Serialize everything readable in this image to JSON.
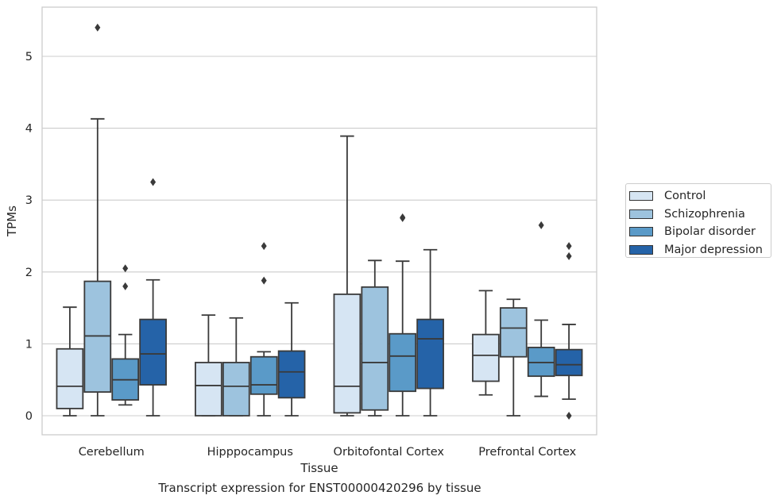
{
  "caption": "Transcript expression for ENST00000420296 by tissue",
  "chart_data": {
    "type": "box",
    "xlabel": "Tissue",
    "ylabel": "TPMs",
    "ylim": [
      -0.25,
      5.7
    ],
    "yticks": [
      0,
      1,
      2,
      3,
      4,
      5
    ],
    "grid": true,
    "legend_position": "right",
    "categories": [
      "Cerebellum",
      "Hipppocampus",
      "Orbitofontal Cortex",
      "Prefrontal Cortex"
    ],
    "series": [
      {
        "name": "Control",
        "color": "#d6e5f3",
        "boxes": [
          {
            "whisker_low": 0.0,
            "q1": 0.1,
            "median": 0.41,
            "q3": 0.93,
            "whisker_high": 1.51,
            "outliers": []
          },
          {
            "whisker_low": 0.0,
            "q1": 0.0,
            "median": 0.42,
            "q3": 0.74,
            "whisker_high": 1.4,
            "outliers": []
          },
          {
            "whisker_low": 0.0,
            "q1": 0.04,
            "median": 0.41,
            "q3": 1.69,
            "whisker_high": 3.89,
            "outliers": []
          },
          {
            "whisker_low": 0.29,
            "q1": 0.48,
            "median": 0.84,
            "q3": 1.13,
            "whisker_high": 1.74,
            "outliers": []
          }
        ]
      },
      {
        "name": "Schizophrenia",
        "color": "#9dc3de",
        "boxes": [
          {
            "whisker_low": 0.0,
            "q1": 0.33,
            "median": 1.11,
            "q3": 1.87,
            "whisker_high": 4.13,
            "outliers": [
              5.4
            ]
          },
          {
            "whisker_low": 0.0,
            "q1": 0.0,
            "median": 0.41,
            "q3": 0.74,
            "whisker_high": 1.36,
            "outliers": []
          },
          {
            "whisker_low": 0.0,
            "q1": 0.08,
            "median": 0.74,
            "q3": 1.79,
            "whisker_high": 2.16,
            "outliers": []
          },
          {
            "whisker_low": 0.0,
            "q1": 0.82,
            "median": 1.22,
            "q3": 1.5,
            "whisker_high": 1.62,
            "outliers": []
          }
        ]
      },
      {
        "name": "Bipolar disorder",
        "color": "#5a9ac8",
        "boxes": [
          {
            "whisker_low": 0.15,
            "q1": 0.22,
            "median": 0.5,
            "q3": 0.79,
            "whisker_high": 1.13,
            "outliers": [
              1.8,
              2.05
            ]
          },
          {
            "whisker_low": 0.0,
            "q1": 0.3,
            "median": 0.43,
            "q3": 0.82,
            "whisker_high": 0.89,
            "outliers": [
              1.88,
              2.36
            ]
          },
          {
            "whisker_low": 0.0,
            "q1": 0.34,
            "median": 0.83,
            "q3": 1.14,
            "whisker_high": 2.15,
            "outliers": [
              2.75,
              2.76
            ]
          },
          {
            "whisker_low": 0.27,
            "q1": 0.55,
            "median": 0.74,
            "q3": 0.95,
            "whisker_high": 1.33,
            "outliers": [
              2.65
            ]
          }
        ]
      },
      {
        "name": "Major depression",
        "color": "#2563a8",
        "boxes": [
          {
            "whisker_low": 0.0,
            "q1": 0.43,
            "median": 0.86,
            "q3": 1.34,
            "whisker_high": 1.89,
            "outliers": [
              3.25
            ]
          },
          {
            "whisker_low": 0.0,
            "q1": 0.25,
            "median": 0.61,
            "q3": 0.9,
            "whisker_high": 1.57,
            "outliers": []
          },
          {
            "whisker_low": 0.0,
            "q1": 0.38,
            "median": 1.07,
            "q3": 1.34,
            "whisker_high": 2.31,
            "outliers": []
          },
          {
            "whisker_low": 0.23,
            "q1": 0.56,
            "median": 0.71,
            "q3": 0.92,
            "whisker_high": 1.27,
            "outliers": [
              0.0,
              2.22,
              2.36
            ]
          }
        ]
      }
    ]
  }
}
